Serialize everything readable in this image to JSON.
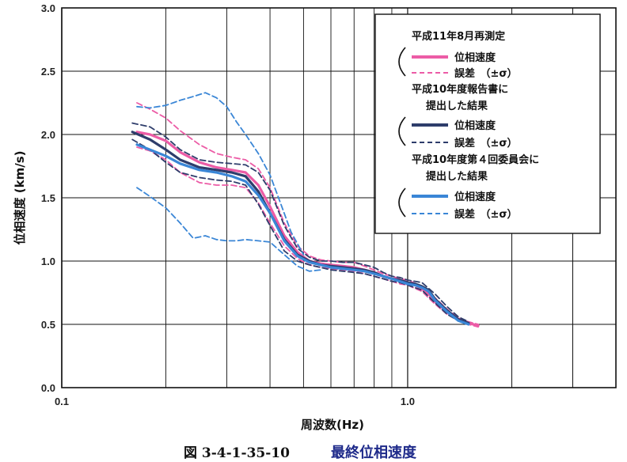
{
  "chart_data": {
    "type": "line",
    "ylabel": "位相速度 (km/s)",
    "xlabel": "周波数(Hz)",
    "xscale": "log",
    "xlim": [
      0.1,
      4.0
    ],
    "ylim": [
      0.0,
      3.0
    ],
    "grid": true,
    "legend_placement": "top-right",
    "x_tick_labels": [
      "0.1",
      "1.0"
    ],
    "y_tick_labels": [
      "0.0",
      "0.5",
      "1.0",
      "1.5",
      "2.0",
      "2.5",
      "3.0"
    ],
    "y_ticks": [
      0,
      0.5,
      1.0,
      1.5,
      2.0,
      2.5,
      3.0
    ],
    "x_ticks": [
      0.1,
      1.0
    ],
    "legend": {
      "group1_title": "平成11年8月再測定",
      "group2_title_line1": "平成10年度報告書に",
      "group2_title_line2": "提出した結果",
      "group3_title_line1": "平成10年度第４回委員会に",
      "group3_title_line2": "提出した結果",
      "velocity_label": "位相速度",
      "error_label": "誤差　（±σ）"
    },
    "colors": {
      "pink": "#ec5ca6",
      "navy": "#2e3d6b",
      "blue": "#3a86d6",
      "grid": "#111111"
    },
    "series": [
      {
        "group": "pink",
        "style": "solid",
        "x": [
          0.165,
          0.18,
          0.2,
          0.22,
          0.25,
          0.28,
          0.31,
          0.34,
          0.37,
          0.4,
          0.44,
          0.48,
          0.52,
          0.56,
          0.6,
          0.65,
          0.7,
          0.75,
          0.8,
          0.85,
          0.9,
          0.95,
          1.0,
          1.05,
          1.1,
          1.15,
          1.2,
          1.3,
          1.4,
          1.5,
          1.6
        ],
        "y": [
          2.02,
          2.0,
          1.95,
          1.86,
          1.78,
          1.74,
          1.72,
          1.7,
          1.6,
          1.43,
          1.2,
          1.07,
          1.0,
          0.98,
          0.97,
          0.96,
          0.95,
          0.93,
          0.91,
          0.88,
          0.86,
          0.85,
          0.83,
          0.81,
          0.78,
          0.74,
          0.68,
          0.6,
          0.54,
          0.51,
          0.49
        ]
      },
      {
        "group": "pink",
        "style": "dashed",
        "x": [
          0.165,
          0.18,
          0.2,
          0.22,
          0.25,
          0.28,
          0.31,
          0.34,
          0.37,
          0.4,
          0.44,
          0.48,
          0.52,
          0.56,
          0.6,
          0.65,
          0.7,
          0.75,
          0.8,
          0.85,
          0.9,
          0.95,
          1.0,
          1.1,
          1.2,
          1.3,
          1.4,
          1.5,
          1.6
        ],
        "y": [
          2.25,
          2.2,
          2.13,
          2.03,
          1.92,
          1.85,
          1.82,
          1.8,
          1.73,
          1.58,
          1.3,
          1.12,
          1.04,
          1.01,
          1.0,
          0.99,
          0.99,
          0.96,
          0.93,
          0.9,
          0.88,
          0.86,
          0.85,
          0.8,
          0.71,
          0.62,
          0.55,
          0.52,
          0.5
        ]
      },
      {
        "group": "pink",
        "style": "dashed",
        "x": [
          0.165,
          0.18,
          0.2,
          0.22,
          0.25,
          0.28,
          0.31,
          0.34,
          0.37,
          0.4,
          0.44,
          0.48,
          0.52,
          0.56,
          0.6,
          0.65,
          0.7,
          0.75,
          0.8,
          0.85,
          0.9,
          0.95,
          1.0,
          1.1,
          1.2,
          1.3,
          1.4,
          1.5,
          1.6
        ],
        "y": [
          1.9,
          1.87,
          1.8,
          1.7,
          1.62,
          1.6,
          1.6,
          1.58,
          1.46,
          1.3,
          1.12,
          1.02,
          0.97,
          0.95,
          0.94,
          0.93,
          0.92,
          0.9,
          0.88,
          0.86,
          0.84,
          0.82,
          0.81,
          0.76,
          0.66,
          0.58,
          0.53,
          0.5,
          0.48
        ]
      },
      {
        "group": "navy",
        "style": "solid",
        "x": [
          0.16,
          0.18,
          0.2,
          0.22,
          0.25,
          0.28,
          0.31,
          0.34,
          0.37,
          0.4,
          0.44,
          0.48,
          0.52,
          0.56,
          0.6,
          0.65,
          0.7,
          0.75,
          0.8,
          0.85,
          0.9,
          0.95,
          1.0,
          1.05,
          1.1,
          1.15,
          1.2,
          1.3,
          1.4,
          1.5
        ],
        "y": [
          2.02,
          1.96,
          1.88,
          1.8,
          1.74,
          1.72,
          1.7,
          1.67,
          1.55,
          1.38,
          1.17,
          1.05,
          1.0,
          0.97,
          0.96,
          0.95,
          0.94,
          0.93,
          0.91,
          0.88,
          0.86,
          0.85,
          0.83,
          0.82,
          0.8,
          0.77,
          0.7,
          0.61,
          0.54,
          0.51
        ]
      },
      {
        "group": "navy",
        "style": "dashed",
        "x": [
          0.16,
          0.18,
          0.2,
          0.22,
          0.25,
          0.28,
          0.31,
          0.34,
          0.37,
          0.4,
          0.44,
          0.48,
          0.52,
          0.56,
          0.6,
          0.65,
          0.7,
          0.75,
          0.8,
          0.85,
          0.9,
          0.95,
          1.0,
          1.1,
          1.2,
          1.3,
          1.4,
          1.5
        ],
        "y": [
          2.09,
          2.06,
          1.98,
          1.88,
          1.8,
          1.78,
          1.77,
          1.76,
          1.7,
          1.56,
          1.28,
          1.1,
          1.03,
          1.0,
          1.0,
          0.99,
          0.99,
          0.97,
          0.95,
          0.91,
          0.88,
          0.87,
          0.85,
          0.83,
          0.74,
          0.64,
          0.56,
          0.52
        ]
      },
      {
        "group": "navy",
        "style": "dashed",
        "x": [
          0.16,
          0.18,
          0.2,
          0.22,
          0.25,
          0.28,
          0.31,
          0.34,
          0.37,
          0.4,
          0.44,
          0.48,
          0.52,
          0.56,
          0.6,
          0.65,
          0.7,
          0.75,
          0.8,
          0.85,
          0.9,
          0.95,
          1.0,
          1.1,
          1.2,
          1.3,
          1.4,
          1.5
        ],
        "y": [
          1.96,
          1.88,
          1.78,
          1.7,
          1.66,
          1.64,
          1.63,
          1.6,
          1.45,
          1.28,
          1.08,
          1.0,
          0.97,
          0.95,
          0.93,
          0.92,
          0.91,
          0.9,
          0.88,
          0.86,
          0.84,
          0.83,
          0.81,
          0.77,
          0.67,
          0.58,
          0.53,
          0.5
        ]
      },
      {
        "group": "blue",
        "style": "solid",
        "x": [
          0.165,
          0.18,
          0.2,
          0.22,
          0.25,
          0.28,
          0.31,
          0.34,
          0.37,
          0.4,
          0.44,
          0.48,
          0.52,
          0.56,
          0.6,
          0.65,
          0.7,
          0.75,
          0.8,
          0.85,
          0.9,
          0.95,
          1.0,
          1.05,
          1.1,
          1.15,
          1.2,
          1.3,
          1.4,
          1.5
        ],
        "y": [
          1.92,
          1.88,
          1.83,
          1.77,
          1.72,
          1.7,
          1.67,
          1.63,
          1.52,
          1.38,
          1.16,
          1.04,
          0.99,
          0.97,
          0.95,
          0.94,
          0.93,
          0.92,
          0.9,
          0.88,
          0.86,
          0.84,
          0.82,
          0.81,
          0.79,
          0.76,
          0.69,
          0.6,
          0.53,
          0.5
        ]
      },
      {
        "group": "blue",
        "style": "dashed",
        "x": [
          0.165,
          0.18,
          0.2,
          0.22,
          0.24,
          0.26,
          0.28,
          0.3,
          0.32,
          0.34,
          0.37,
          0.4,
          0.43,
          0.46,
          0.5
        ],
        "y": [
          2.22,
          2.21,
          2.23,
          2.27,
          2.3,
          2.33,
          2.29,
          2.22,
          2.1,
          2.0,
          1.85,
          1.68,
          1.45,
          1.23,
          1.05
        ]
      },
      {
        "group": "blue",
        "style": "dashed",
        "x": [
          0.165,
          0.18,
          0.2,
          0.22,
          0.24,
          0.26,
          0.28,
          0.3,
          0.32,
          0.34,
          0.37,
          0.4,
          0.44,
          0.48,
          0.52,
          0.56
        ],
        "y": [
          1.58,
          1.51,
          1.42,
          1.3,
          1.18,
          1.2,
          1.17,
          1.16,
          1.16,
          1.17,
          1.16,
          1.15,
          1.05,
          0.96,
          0.92,
          0.93
        ]
      }
    ]
  },
  "caption": {
    "prefix": "図 3-4-1-35-10",
    "title": "最終位相速度"
  }
}
